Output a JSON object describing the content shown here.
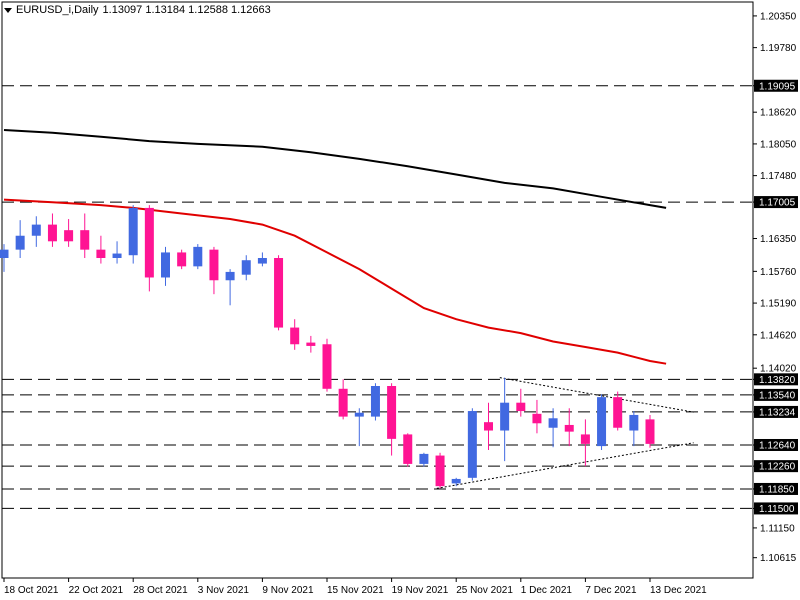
{
  "header": {
    "symbol": "EURUSD_i,Daily",
    "ohlc": "1.13097 1.13184 1.12588 1.12663"
  },
  "colors": {
    "bull": "#4169e1",
    "bear": "#ff1493",
    "ma_fast": "#e00000",
    "ma_slow": "#000000",
    "level": "#000000"
  },
  "chart_data": {
    "type": "candlestick",
    "ylim": [
      1.1025,
      1.206
    ],
    "y_ticks": [
      "1.20350",
      "1.19780",
      "1.19095",
      "1.18620",
      "1.18050",
      "1.17480",
      "1.17005",
      "1.16350",
      "1.15760",
      "1.15190",
      "1.14620",
      "1.14020",
      "1.13820",
      "1.13540",
      "1.13234",
      "1.12640",
      "1.12260",
      "1.11850",
      "1.11500",
      "1.11150",
      "1.10615"
    ],
    "x_labels": [
      {
        "label": "18 Oct 2021",
        "index": 0
      },
      {
        "label": "22 Oct 2021",
        "index": 4
      },
      {
        "label": "28 Oct 2021",
        "index": 8
      },
      {
        "label": "3 Nov 2021",
        "index": 12
      },
      {
        "label": "9 Nov 2021",
        "index": 16
      },
      {
        "label": "15 Nov 2021",
        "index": 20
      },
      {
        "label": "19 Nov 2021",
        "index": 24
      },
      {
        "label": "25 Nov 2021",
        "index": 28
      },
      {
        "label": "1 Dec 2021",
        "index": 32
      },
      {
        "label": "7 Dec 2021",
        "index": 36
      },
      {
        "label": "13 Dec 2021",
        "index": 40
      }
    ],
    "levels": [
      {
        "label": "1.19095",
        "value": 1.19095
      },
      {
        "label": "1.17005",
        "value": 1.17005
      },
      {
        "label": "1.13820",
        "value": 1.1382
      },
      {
        "label": "1.13540",
        "value": 1.1354
      },
      {
        "label": "1.13234",
        "value": 1.13234
      },
      {
        "label": "1.12640",
        "value": 1.1264
      },
      {
        "label": "1.12260",
        "value": 1.1226
      },
      {
        "label": "1.11850",
        "value": 1.1185
      },
      {
        "label": "1.11500",
        "value": 1.115
      }
    ],
    "candles": [
      {
        "o": 1.16,
        "h": 1.1625,
        "l": 1.1575,
        "c": 1.1615
      },
      {
        "o": 1.1615,
        "h": 1.1668,
        "l": 1.16,
        "c": 1.164
      },
      {
        "o": 1.164,
        "h": 1.1675,
        "l": 1.162,
        "c": 1.166
      },
      {
        "o": 1.166,
        "h": 1.168,
        "l": 1.162,
        "c": 1.163
      },
      {
        "o": 1.165,
        "h": 1.167,
        "l": 1.162,
        "c": 1.163
      },
      {
        "o": 1.165,
        "h": 1.168,
        "l": 1.16,
        "c": 1.1615
      },
      {
        "o": 1.1615,
        "h": 1.164,
        "l": 1.159,
        "c": 1.16
      },
      {
        "o": 1.16,
        "h": 1.163,
        "l": 1.159,
        "c": 1.1608
      },
      {
        "o": 1.1605,
        "h": 1.1695,
        "l": 1.159,
        "c": 1.169
      },
      {
        "o": 1.169,
        "h": 1.1695,
        "l": 1.154,
        "c": 1.1565
      },
      {
        "o": 1.1565,
        "h": 1.162,
        "l": 1.155,
        "c": 1.161
      },
      {
        "o": 1.161,
        "h": 1.1615,
        "l": 1.158,
        "c": 1.1585
      },
      {
        "o": 1.1585,
        "h": 1.1625,
        "l": 1.158,
        "c": 1.162
      },
      {
        "o": 1.1615,
        "h": 1.162,
        "l": 1.1535,
        "c": 1.156
      },
      {
        "o": 1.156,
        "h": 1.158,
        "l": 1.1515,
        "c": 1.1575
      },
      {
        "o": 1.157,
        "h": 1.1605,
        "l": 1.156,
        "c": 1.1596
      },
      {
        "o": 1.159,
        "h": 1.161,
        "l": 1.1585,
        "c": 1.16
      },
      {
        "o": 1.16,
        "h": 1.1605,
        "l": 1.147,
        "c": 1.1475
      },
      {
        "o": 1.1475,
        "h": 1.149,
        "l": 1.1435,
        "c": 1.1445
      },
      {
        "o": 1.1448,
        "h": 1.146,
        "l": 1.143,
        "c": 1.1442
      },
      {
        "o": 1.1445,
        "h": 1.1455,
        "l": 1.136,
        "c": 1.1365
      },
      {
        "o": 1.1365,
        "h": 1.1382,
        "l": 1.131,
        "c": 1.1315
      },
      {
        "o": 1.1315,
        "h": 1.133,
        "l": 1.1262,
        "c": 1.1322
      },
      {
        "o": 1.1315,
        "h": 1.1375,
        "l": 1.1308,
        "c": 1.137
      },
      {
        "o": 1.137,
        "h": 1.1375,
        "l": 1.1245,
        "c": 1.1275
      },
      {
        "o": 1.1283,
        "h": 1.1285,
        "l": 1.1225,
        "c": 1.123
      },
      {
        "o": 1.123,
        "h": 1.125,
        "l": 1.1225,
        "c": 1.1248
      },
      {
        "o": 1.1245,
        "h": 1.125,
        "l": 1.1186,
        "c": 1.119
      },
      {
        "o": 1.1195,
        "h": 1.1205,
        "l": 1.119,
        "c": 1.1203
      },
      {
        "o": 1.1205,
        "h": 1.133,
        "l": 1.12,
        "c": 1.1325
      },
      {
        "o": 1.1305,
        "h": 1.134,
        "l": 1.1255,
        "c": 1.129
      },
      {
        "o": 1.129,
        "h": 1.1385,
        "l": 1.1235,
        "c": 1.134
      },
      {
        "o": 1.134,
        "h": 1.1365,
        "l": 1.1315,
        "c": 1.1325
      },
      {
        "o": 1.132,
        "h": 1.1345,
        "l": 1.1285,
        "c": 1.1303
      },
      {
        "o": 1.1295,
        "h": 1.133,
        "l": 1.126,
        "c": 1.1312
      },
      {
        "o": 1.13,
        "h": 1.133,
        "l": 1.1262,
        "c": 1.1288
      },
      {
        "o": 1.1283,
        "h": 1.131,
        "l": 1.1226,
        "c": 1.1266
      },
      {
        "o": 1.1262,
        "h": 1.1355,
        "l": 1.1255,
        "c": 1.135
      },
      {
        "o": 1.135,
        "h": 1.136,
        "l": 1.129,
        "c": 1.1295
      },
      {
        "o": 1.129,
        "h": 1.1325,
        "l": 1.1262,
        "c": 1.1318
      },
      {
        "o": 1.131,
        "h": 1.1318,
        "l": 1.1259,
        "c": 1.1266
      }
    ],
    "ma_slow": [
      [
        0,
        1.183
      ],
      [
        3,
        1.1825
      ],
      [
        6,
        1.1818
      ],
      [
        9,
        1.181
      ],
      [
        12,
        1.1805
      ],
      [
        16,
        1.18
      ],
      [
        19,
        1.179
      ],
      [
        22,
        1.1778
      ],
      [
        25,
        1.1765
      ],
      [
        28,
        1.175
      ],
      [
        31,
        1.1735
      ],
      [
        34,
        1.1725
      ],
      [
        37,
        1.171
      ],
      [
        40,
        1.1695
      ],
      [
        41,
        1.169
      ]
    ],
    "ma_fast": [
      [
        0,
        1.1705
      ],
      [
        3,
        1.17
      ],
      [
        6,
        1.1695
      ],
      [
        8,
        1.169
      ],
      [
        11,
        1.168
      ],
      [
        14,
        1.167
      ],
      [
        16,
        1.166
      ],
      [
        18,
        1.164
      ],
      [
        20,
        1.161
      ],
      [
        22,
        1.158
      ],
      [
        24,
        1.1545
      ],
      [
        26,
        1.151
      ],
      [
        28,
        1.149
      ],
      [
        30,
        1.1475
      ],
      [
        32,
        1.1465
      ],
      [
        34,
        1.145
      ],
      [
        36,
        1.144
      ],
      [
        38,
        1.143
      ],
      [
        40,
        1.1415
      ],
      [
        41,
        1.141
      ]
    ],
    "triangle_upper": [
      [
        30.7,
        1.1385
      ],
      [
        42.7,
        1.1323
      ]
    ],
    "triangle_lower": [
      [
        26.8,
        1.1186
      ],
      [
        42.7,
        1.1268
      ]
    ]
  }
}
